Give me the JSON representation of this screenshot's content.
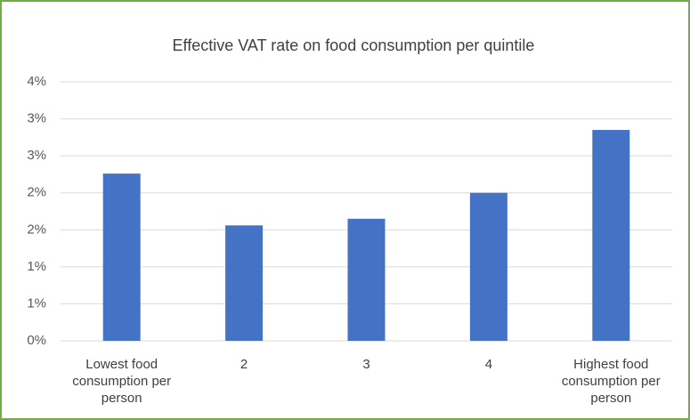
{
  "chart_data": {
    "type": "bar",
    "title": "Effective VAT rate on food consumption per quintile",
    "categories": [
      "Lowest food consumption per person",
      "2",
      "3",
      "4",
      "Highest food consumption per person"
    ],
    "values": [
      2.26,
      1.56,
      1.65,
      2.0,
      2.85
    ],
    "color": "#4472c4",
    "ylim": [
      0,
      3.5
    ],
    "yticks": [
      {
        "value": 0,
        "label": "0%"
      },
      {
        "value": 0.5,
        "label": "1%"
      },
      {
        "value": 1,
        "label": "1%"
      },
      {
        "value": 1.5,
        "label": "2%"
      },
      {
        "value": 2,
        "label": "2%"
      },
      {
        "value": 2.5,
        "label": "3%"
      },
      {
        "value": 3,
        "label": "3%"
      },
      {
        "value": 3.5,
        "label": "4%"
      }
    ],
    "grid": true
  }
}
